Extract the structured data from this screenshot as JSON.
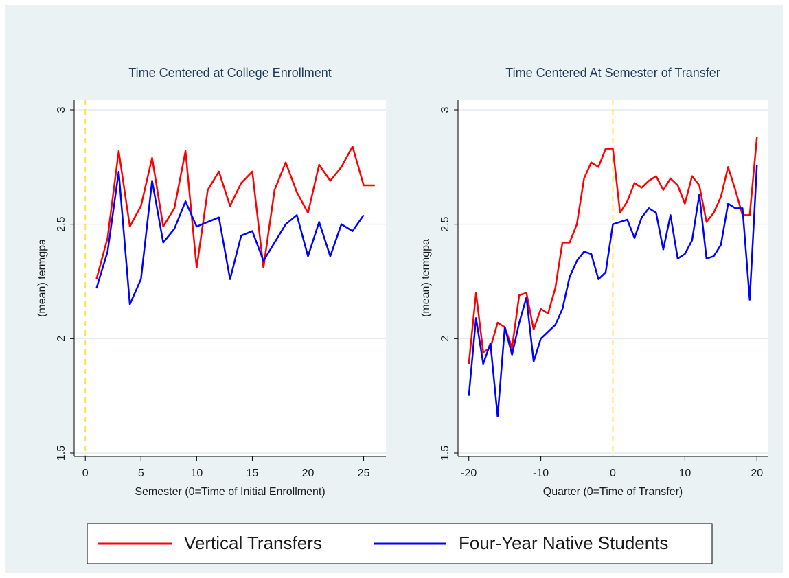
{
  "chart_data": [
    {
      "type": "line",
      "title": "Time Centered at College Enrollment",
      "xlabel": "Semester  (0=Time of Initial Enrollment)",
      "ylabel": "(mean) termgpa",
      "x": [
        1,
        2,
        3,
        4,
        5,
        6,
        7,
        8,
        9,
        10,
        11,
        12,
        13,
        14,
        15,
        16,
        17,
        18,
        19,
        20,
        21,
        22,
        23,
        24,
        25,
        26
      ],
      "series": [
        {
          "name": "Vertical Transfers",
          "color": "#ff0000",
          "values": [
            2.26,
            2.44,
            2.82,
            2.49,
            2.58,
            2.79,
            2.49,
            2.57,
            2.82,
            2.31,
            2.65,
            2.73,
            2.58,
            2.68,
            2.73,
            2.31,
            2.65,
            2.77,
            2.64,
            2.55,
            2.76,
            2.69,
            2.75,
            2.84,
            2.67,
            2.67
          ]
        },
        {
          "name": "Four-Year Native Students",
          "color": "#0000ff",
          "values": [
            2.22,
            2.38,
            2.73,
            2.15,
            2.26,
            2.69,
            2.42,
            2.48,
            2.6,
            2.49,
            2.51,
            2.53,
            2.26,
            2.45,
            2.47,
            2.34,
            2.42,
            2.5,
            2.54,
            2.36,
            2.51,
            2.36,
            2.5,
            2.47,
            2.54,
            null
          ]
        }
      ],
      "xlim": [
        -1,
        27
      ],
      "xticks": [
        0,
        5,
        10,
        15,
        20,
        25
      ],
      "ylim": [
        1.485,
        3.045
      ],
      "yticks": [
        1.5,
        2,
        2.5,
        3
      ],
      "grid": true,
      "xline": 0
    },
    {
      "type": "line",
      "title": "Time Centered At Semester of Transfer",
      "xlabel": "Quarter (0=Time of Transfer)",
      "ylabel": "(mean) termgpa",
      "x": [
        -20,
        -19,
        -18,
        -17,
        -16,
        -15,
        -14,
        -13,
        -12,
        -11,
        -10,
        -9,
        -8,
        -7,
        -6,
        -5,
        -4,
        -3,
        -2,
        -1,
        0,
        1,
        2,
        3,
        4,
        5,
        6,
        7,
        8,
        9,
        10,
        11,
        12,
        13,
        14,
        15,
        16,
        17,
        18,
        19,
        20
      ],
      "series": [
        {
          "color": "#ff0000",
          "values": [
            1.89,
            2.2,
            1.94,
            1.96,
            2.07,
            2.05,
            1.96,
            2.19,
            2.2,
            2.04,
            2.13,
            2.11,
            2.22,
            2.42,
            2.42,
            2.5,
            2.7,
            2.77,
            2.75,
            2.83,
            2.83,
            2.55,
            2.6,
            2.68,
            2.66,
            2.69,
            2.71,
            2.65,
            2.7,
            2.67,
            2.59,
            2.71,
            2.67,
            2.51,
            2.55,
            2.62,
            2.75,
            2.65,
            2.54,
            2.54,
            2.88
          ]
        },
        {
          "color": "#0000ff",
          "values": [
            1.75,
            2.09,
            1.89,
            1.98,
            1.66,
            2.05,
            1.93,
            2.07,
            2.18,
            1.9,
            2.0,
            2.03,
            2.06,
            2.13,
            2.27,
            2.34,
            2.38,
            2.37,
            2.26,
            2.29,
            2.5,
            2.51,
            2.52,
            2.44,
            2.53,
            2.57,
            2.55,
            2.39,
            2.54,
            2.35,
            2.37,
            2.43,
            2.63,
            2.35,
            2.36,
            2.41,
            2.59,
            2.57,
            2.57,
            2.17,
            2.76
          ]
        }
      ],
      "xlim": [
        -21.5,
        21.5
      ],
      "xticks": [
        -20,
        -10,
        0,
        10,
        20
      ],
      "ylim": [
        1.485,
        3.045
      ],
      "yticks": [
        1.5,
        2,
        2.5,
        3
      ],
      "grid": true,
      "xline": 0
    }
  ]
}
